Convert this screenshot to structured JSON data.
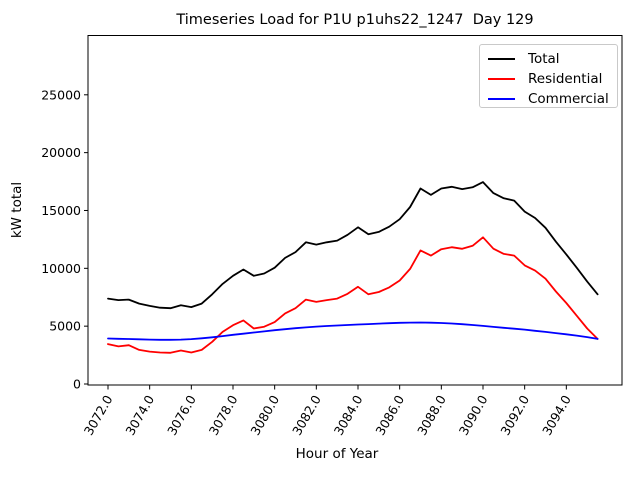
{
  "window": {
    "background": "#ffffff"
  },
  "chart_data": {
    "type": "line",
    "title": "Timeseries Load for P1U p1uhs22_1247  Day 129",
    "xlabel": "Hour of Year",
    "ylabel": "kW total",
    "grid": false,
    "legend_position": "upper right",
    "axis_color": "#000000",
    "xlim": [
      3071.05,
      3096.7
    ],
    "ylim": [
      0,
      30200
    ],
    "xtick_labels": [
      "3072.0",
      "3074.0",
      "3076.0",
      "3078.0",
      "3080.0",
      "3082.0",
      "3084.0",
      "3086.0",
      "3088.0",
      "3090.0",
      "3092.0",
      "3094.0"
    ],
    "xtick_values": [
      3072,
      3074,
      3076,
      3078,
      3080,
      3082,
      3084,
      3086,
      3088,
      3090,
      3092,
      3094
    ],
    "ytick_labels": [
      "0",
      "5000",
      "10000",
      "15000",
      "20000",
      "25000"
    ],
    "ytick_values": [
      0,
      5000,
      10000,
      15000,
      20000,
      25000
    ],
    "x": [
      3072.0,
      3072.5,
      3073.0,
      3073.5,
      3074.0,
      3074.5,
      3075.0,
      3075.5,
      3076.0,
      3076.5,
      3077.0,
      3077.5,
      3078.0,
      3078.5,
      3079.0,
      3079.5,
      3080.0,
      3080.5,
      3081.0,
      3081.5,
      3082.0,
      3082.5,
      3083.0,
      3083.5,
      3084.0,
      3084.5,
      3085.0,
      3085.5,
      3086.0,
      3086.5,
      3087.0,
      3087.5,
      3088.0,
      3088.5,
      3089.0,
      3089.5,
      3090.0,
      3090.5,
      3091.0,
      3091.5,
      3092.0,
      3092.5,
      3093.0,
      3093.5,
      3094.0,
      3094.5,
      3095.0,
      3095.5
    ],
    "series": [
      {
        "name": "Total",
        "color": "#000000",
        "values": [
          7380,
          7250,
          7300,
          6950,
          6750,
          6600,
          6550,
          6800,
          6650,
          6950,
          7750,
          8650,
          9350,
          9900,
          9350,
          9550,
          10050,
          10900,
          11400,
          12250,
          12050,
          12250,
          12400,
          12900,
          13550,
          12950,
          13150,
          13600,
          14250,
          15300,
          16900,
          16350,
          16900,
          17050,
          16850,
          17000,
          17450,
          16500,
          16050,
          15850,
          14900,
          14350,
          13500,
          12300,
          11200,
          10050,
          8850,
          7750
        ]
      },
      {
        "name": "Residential",
        "color": "#ff0000",
        "values": [
          3450,
          3250,
          3350,
          2950,
          2800,
          2720,
          2700,
          2900,
          2720,
          2950,
          3650,
          4500,
          5080,
          5500,
          4800,
          4950,
          5350,
          6100,
          6550,
          7300,
          7100,
          7250,
          7380,
          7800,
          8400,
          7750,
          7950,
          8350,
          8950,
          9950,
          11550,
          11100,
          11650,
          11830,
          11690,
          11950,
          12680,
          11700,
          11250,
          11100,
          10250,
          9800,
          9100,
          8000,
          7000,
          5900,
          4800,
          3900
        ]
      },
      {
        "name": "Commercial",
        "color": "#0000ff",
        "values": [
          3930,
          3910,
          3890,
          3860,
          3840,
          3820,
          3820,
          3840,
          3880,
          3950,
          4040,
          4140,
          4250,
          4350,
          4450,
          4550,
          4650,
          4740,
          4820,
          4890,
          4960,
          5010,
          5060,
          5100,
          5140,
          5180,
          5220,
          5260,
          5290,
          5310,
          5320,
          5300,
          5270,
          5230,
          5170,
          5100,
          5020,
          4940,
          4860,
          4780,
          4700,
          4600,
          4500,
          4400,
          4300,
          4180,
          4050,
          3900
        ]
      }
    ]
  }
}
